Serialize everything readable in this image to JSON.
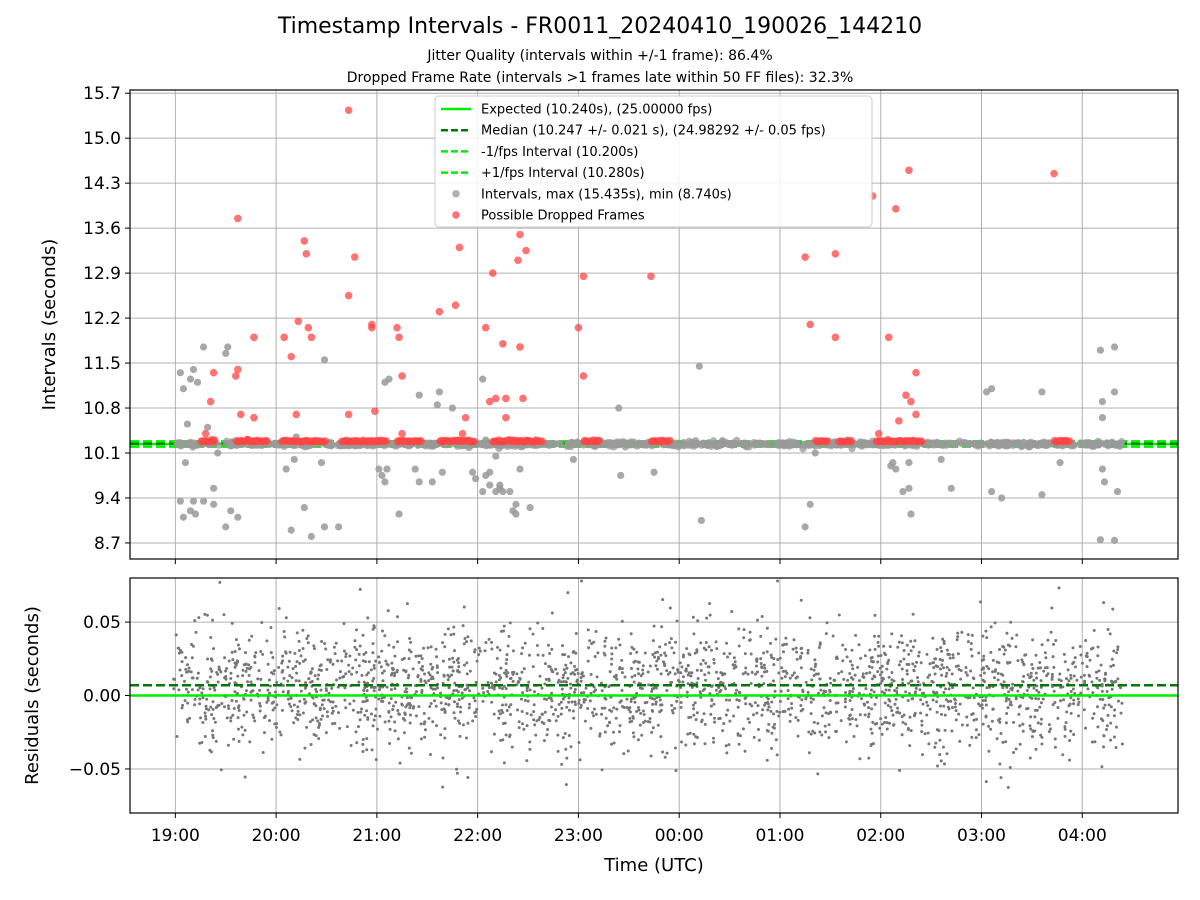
{
  "figure": {
    "title": "Timestamp Intervals - FR0011_20240410_190026_144210",
    "subtitle_1": "Jitter Quality (intervals within +/-1 frame): 86.4%",
    "subtitle_2": "Dropped Frame Rate (intervals >1 frames late within 50 FF files): 32.3%"
  },
  "chart_data": [
    {
      "type": "scatter",
      "ylabel": "Intervals (seconds)",
      "xlabel": "",
      "ylim": [
        8.45,
        15.75
      ],
      "y_ticks": [
        "8.7",
        "9.4",
        "10.1",
        "10.8",
        "11.5",
        "12.2",
        "12.9",
        "13.6",
        "14.3",
        "15.0",
        "15.7"
      ],
      "x_ticks": [
        "19:00",
        "20:00",
        "21:00",
        "22:00",
        "23:00",
        "00:00",
        "01:00",
        "02:00",
        "03:00",
        "04:00"
      ],
      "xlim_hours_from_19": [
        -0.45,
        9.95
      ],
      "grid": true,
      "legend_position": "top-center",
      "lines": [
        {
          "name": "Expected (10.240s), (25.00000 fps)",
          "y": 10.24,
          "color": "#00ee00",
          "style": "solid"
        },
        {
          "name": "Median (10.247 +/- 0.021 s), (24.98292 +/- 0.05 fps)",
          "y": 10.247,
          "color": "#007700",
          "style": "dashed"
        },
        {
          "name": "-1/fps Interval (10.200s)",
          "y": 10.2,
          "color": "#00ee00",
          "style": "dashed"
        },
        {
          "name": "+1/fps Interval (10.280s)",
          "y": 10.28,
          "color": "#00ee00",
          "style": "dashed"
        }
      ],
      "scatter_series": [
        {
          "name": "Intervals, max (15.435s), min (8.740s)",
          "color": "#999999"
        },
        {
          "name": "Possible Dropped Frames",
          "color": "#ff4444"
        }
      ],
      "outliers_gray": [
        [
          0.05,
          11.35
        ],
        [
          0.08,
          11.1
        ],
        [
          0.12,
          10.55
        ],
        [
          0.15,
          11.25
        ],
        [
          0.18,
          11.4
        ],
        [
          0.22,
          11.2
        ],
        [
          0.28,
          11.75
        ],
        [
          0.32,
          10.5
        ],
        [
          0.38,
          10.3
        ],
        [
          0.42,
          10.1
        ],
        [
          0.5,
          11.65
        ],
        [
          0.52,
          11.75
        ],
        [
          0.1,
          9.95
        ],
        [
          0.05,
          9.35
        ],
        [
          0.08,
          9.1
        ],
        [
          0.15,
          9.2
        ],
        [
          0.2,
          9.15
        ],
        [
          0.18,
          9.35
        ],
        [
          0.28,
          9.35
        ],
        [
          0.38,
          9.55
        ],
        [
          0.38,
          9.3
        ],
        [
          0.5,
          8.95
        ],
        [
          0.55,
          9.2
        ],
        [
          0.62,
          9.1
        ],
        [
          1.1,
          9.85
        ],
        [
          1.18,
          10.0
        ],
        [
          1.2,
          10.35
        ],
        [
          1.28,
          9.25
        ],
        [
          1.15,
          8.9
        ],
        [
          1.35,
          8.8
        ],
        [
          1.45,
          9.95
        ],
        [
          1.48,
          8.95
        ],
        [
          1.48,
          11.55
        ],
        [
          1.62,
          8.95
        ],
        [
          2.02,
          9.85
        ],
        [
          2.05,
          9.75
        ],
        [
          2.08,
          9.65
        ],
        [
          2.08,
          11.2
        ],
        [
          2.12,
          11.25
        ],
        [
          2.1,
          9.85
        ],
        [
          2.22,
          9.15
        ],
        [
          2.38,
          9.85
        ],
        [
          2.42,
          11.0
        ],
        [
          2.42,
          9.65
        ],
        [
          2.55,
          9.65
        ],
        [
          2.6,
          10.85
        ],
        [
          2.65,
          9.8
        ],
        [
          2.62,
          11.05
        ],
        [
          2.75,
          10.8
        ],
        [
          2.95,
          9.8
        ],
        [
          2.98,
          9.7
        ],
        [
          3.05,
          9.5
        ],
        [
          3.08,
          10.3
        ],
        [
          3.18,
          10.05
        ],
        [
          3.22,
          9.6
        ],
        [
          3.35,
          9.2
        ],
        [
          3.42,
          10.25
        ],
        [
          3.05,
          11.25
        ],
        [
          3.08,
          9.75
        ],
        [
          3.12,
          9.6
        ],
        [
          3.12,
          9.8
        ],
        [
          3.18,
          9.5
        ],
        [
          3.22,
          9.55
        ],
        [
          3.25,
          9.5
        ],
        [
          3.32,
          9.5
        ],
        [
          3.38,
          9.3
        ],
        [
          3.38,
          9.15
        ],
        [
          3.42,
          9.85
        ],
        [
          3.52,
          9.25
        ],
        [
          3.95,
          10.0
        ],
        [
          4.4,
          10.8
        ],
        [
          4.42,
          9.75
        ],
        [
          4.75,
          9.8
        ],
        [
          5.2,
          11.45
        ],
        [
          5.22,
          9.05
        ],
        [
          6.25,
          8.95
        ],
        [
          6.3,
          9.3
        ],
        [
          6.35,
          10.1
        ],
        [
          7.1,
          9.9
        ],
        [
          7.12,
          9.95
        ],
        [
          7.15,
          9.85
        ],
        [
          7.22,
          9.5
        ],
        [
          7.28,
          9.55
        ],
        [
          7.3,
          9.15
        ],
        [
          7.28,
          9.95
        ],
        [
          7.6,
          10.0
        ],
        [
          7.7,
          9.55
        ],
        [
          8.05,
          11.05
        ],
        [
          8.1,
          11.1
        ],
        [
          8.1,
          9.5
        ],
        [
          8.2,
          9.4
        ],
        [
          8.6,
          11.05
        ],
        [
          8.6,
          9.45
        ],
        [
          8.78,
          9.95
        ],
        [
          9.18,
          11.7
        ],
        [
          9.2,
          10.9
        ],
        [
          9.2,
          10.65
        ],
        [
          9.22,
          9.65
        ],
        [
          9.2,
          9.85
        ],
        [
          9.18,
          8.75
        ],
        [
          9.32,
          11.75
        ],
        [
          9.32,
          11.05
        ],
        [
          9.35,
          9.5
        ],
        [
          9.32,
          8.74
        ]
      ],
      "outliers_red": [
        [
          0.38,
          11.35
        ],
        [
          0.3,
          10.4
        ],
        [
          0.35,
          10.9
        ],
        [
          0.6,
          11.3
        ],
        [
          0.62,
          13.75
        ],
        [
          0.62,
          11.4
        ],
        [
          0.65,
          10.7
        ],
        [
          0.78,
          11.9
        ],
        [
          0.78,
          10.65
        ],
        [
          1.08,
          11.9
        ],
        [
          1.15,
          11.6
        ],
        [
          1.2,
          10.7
        ],
        [
          1.22,
          12.15
        ],
        [
          1.28,
          13.4
        ],
        [
          1.3,
          13.2
        ],
        [
          1.32,
          12.05
        ],
        [
          1.35,
          11.9
        ],
        [
          1.72,
          12.55
        ],
        [
          1.72,
          15.435
        ],
        [
          1.72,
          10.7
        ],
        [
          1.78,
          13.15
        ],
        [
          1.95,
          12.05
        ],
        [
          1.95,
          12.1
        ],
        [
          1.98,
          10.75
        ],
        [
          2.2,
          12.05
        ],
        [
          2.22,
          11.9
        ],
        [
          2.25,
          11.3
        ],
        [
          2.25,
          10.4
        ],
        [
          2.62,
          12.3
        ],
        [
          2.78,
          12.4
        ],
        [
          2.82,
          13.3
        ],
        [
          2.85,
          10.4
        ],
        [
          2.88,
          10.65
        ],
        [
          3.08,
          12.05
        ],
        [
          3.15,
          12.9
        ],
        [
          3.12,
          10.9
        ],
        [
          3.18,
          10.95
        ],
        [
          3.25,
          11.8
        ],
        [
          3.28,
          10.65
        ],
        [
          3.28,
          10.95
        ],
        [
          3.42,
          11.75
        ],
        [
          3.4,
          13.1
        ],
        [
          3.42,
          13.5
        ],
        [
          3.48,
          13.25
        ],
        [
          3.45,
          10.95
        ],
        [
          4.0,
          12.05
        ],
        [
          4.05,
          12.85
        ],
        [
          4.05,
          11.3
        ],
        [
          4.72,
          12.85
        ],
        [
          6.25,
          13.15
        ],
        [
          6.3,
          12.1
        ],
        [
          6.55,
          13.2
        ],
        [
          6.55,
          11.9
        ],
        [
          6.92,
          14.1
        ],
        [
          6.98,
          10.4
        ],
        [
          7.08,
          11.9
        ],
        [
          7.15,
          13.9
        ],
        [
          7.18,
          10.6
        ],
        [
          7.25,
          11.0
        ],
        [
          7.28,
          14.5
        ],
        [
          7.3,
          10.9
        ],
        [
          7.35,
          11.35
        ],
        [
          7.35,
          10.7
        ],
        [
          8.72,
          14.45
        ]
      ],
      "dropped_clusters_hours": [
        [
          0.25,
          0.4
        ],
        [
          0.6,
          0.92
        ],
        [
          1.05,
          1.5
        ],
        [
          1.65,
          1.95
        ],
        [
          1.95,
          2.1
        ],
        [
          2.2,
          2.45
        ],
        [
          2.62,
          2.98
        ],
        [
          3.15,
          3.65
        ],
        [
          4.05,
          4.22
        ],
        [
          4.72,
          4.92
        ],
        [
          6.35,
          6.48
        ],
        [
          6.58,
          6.72
        ],
        [
          6.95,
          7.42
        ],
        [
          8.72,
          8.88
        ]
      ]
    },
    {
      "type": "scatter",
      "ylabel": "Residuals (seconds)",
      "xlabel": "Time (UTC)",
      "ylim": [
        -0.08,
        0.08
      ],
      "y_ticks": [
        "−0.05",
        "0.00",
        "0.05"
      ],
      "x_ticks": [
        "19:00",
        "20:00",
        "21:00",
        "22:00",
        "23:00",
        "00:00",
        "01:00",
        "02:00",
        "03:00",
        "04:00"
      ],
      "xlim_hours_from_19": [
        -0.45,
        9.95
      ],
      "grid": true,
      "lines": [
        {
          "y": 0.0,
          "color": "#00ee00",
          "style": "solid"
        },
        {
          "y": 0.007,
          "color": "#007700",
          "style": "dashed"
        }
      ],
      "residual_std_s": 0.021,
      "point_color": "#777777"
    }
  ],
  "colors": {
    "expected": "#00ee00",
    "median": "#007700",
    "interval_gray": "#999999",
    "dropped_red": "#ff4444",
    "grid": "#b0b0b0"
  }
}
